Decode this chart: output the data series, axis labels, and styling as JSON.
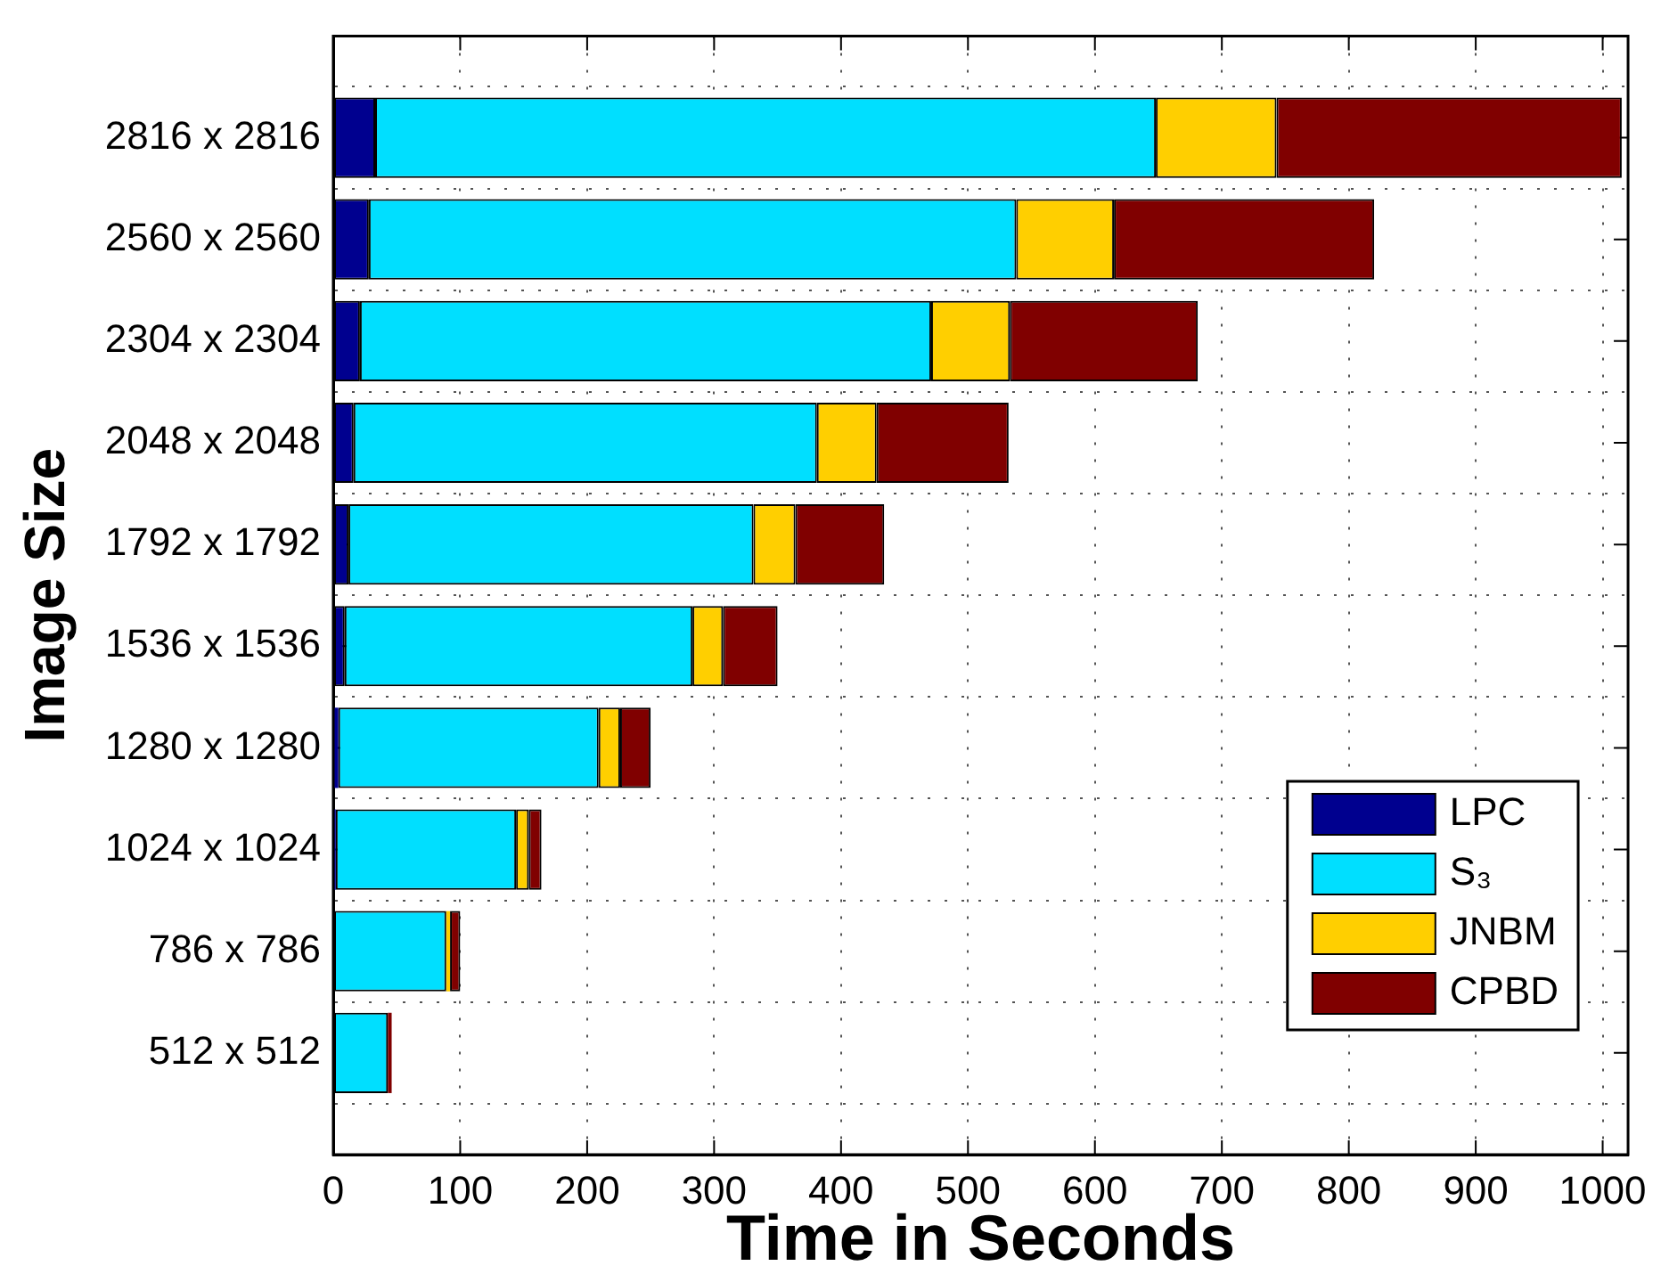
{
  "chart_data": {
    "type": "bar",
    "orientation": "horizontal",
    "stacked": true,
    "xlabel": "Time in Seconds",
    "ylabel": "Image Size",
    "categories": [
      "2816 x 2816",
      "2560 x 2560",
      "2304 x 2304",
      "2048 x 2048",
      "1792 x 1792",
      "1536 x 1536",
      "1280 x 1280",
      "1024 x 1024",
      "786 x 786",
      "512 x 512"
    ],
    "series": [
      {
        "name": "LPC",
        "color": "#00008f",
        "values": [
          33,
          28,
          21,
          16,
          12,
          9,
          4,
          2,
          null,
          null
        ]
      },
      {
        "name": "S₃",
        "color": "#00dfff",
        "values": [
          615,
          510,
          450,
          365,
          319,
          274,
          205,
          142,
          89,
          43
        ]
      },
      {
        "name": "JNBM",
        "color": "#ffcf00",
        "values": [
          95,
          77,
          62,
          47,
          33,
          24,
          17,
          10,
          3,
          null
        ]
      },
      {
        "name": "CPBD",
        "color": "#800000",
        "values": [
          272,
          205,
          148,
          104,
          70,
          43,
          24,
          10,
          8,
          3
        ]
      }
    ],
    "xlim": [
      0,
      1020
    ],
    "xticks": [
      0,
      100,
      200,
      300,
      400,
      500,
      600,
      700,
      800,
      900,
      1000
    ],
    "grid": true,
    "legend": "bottom right"
  }
}
